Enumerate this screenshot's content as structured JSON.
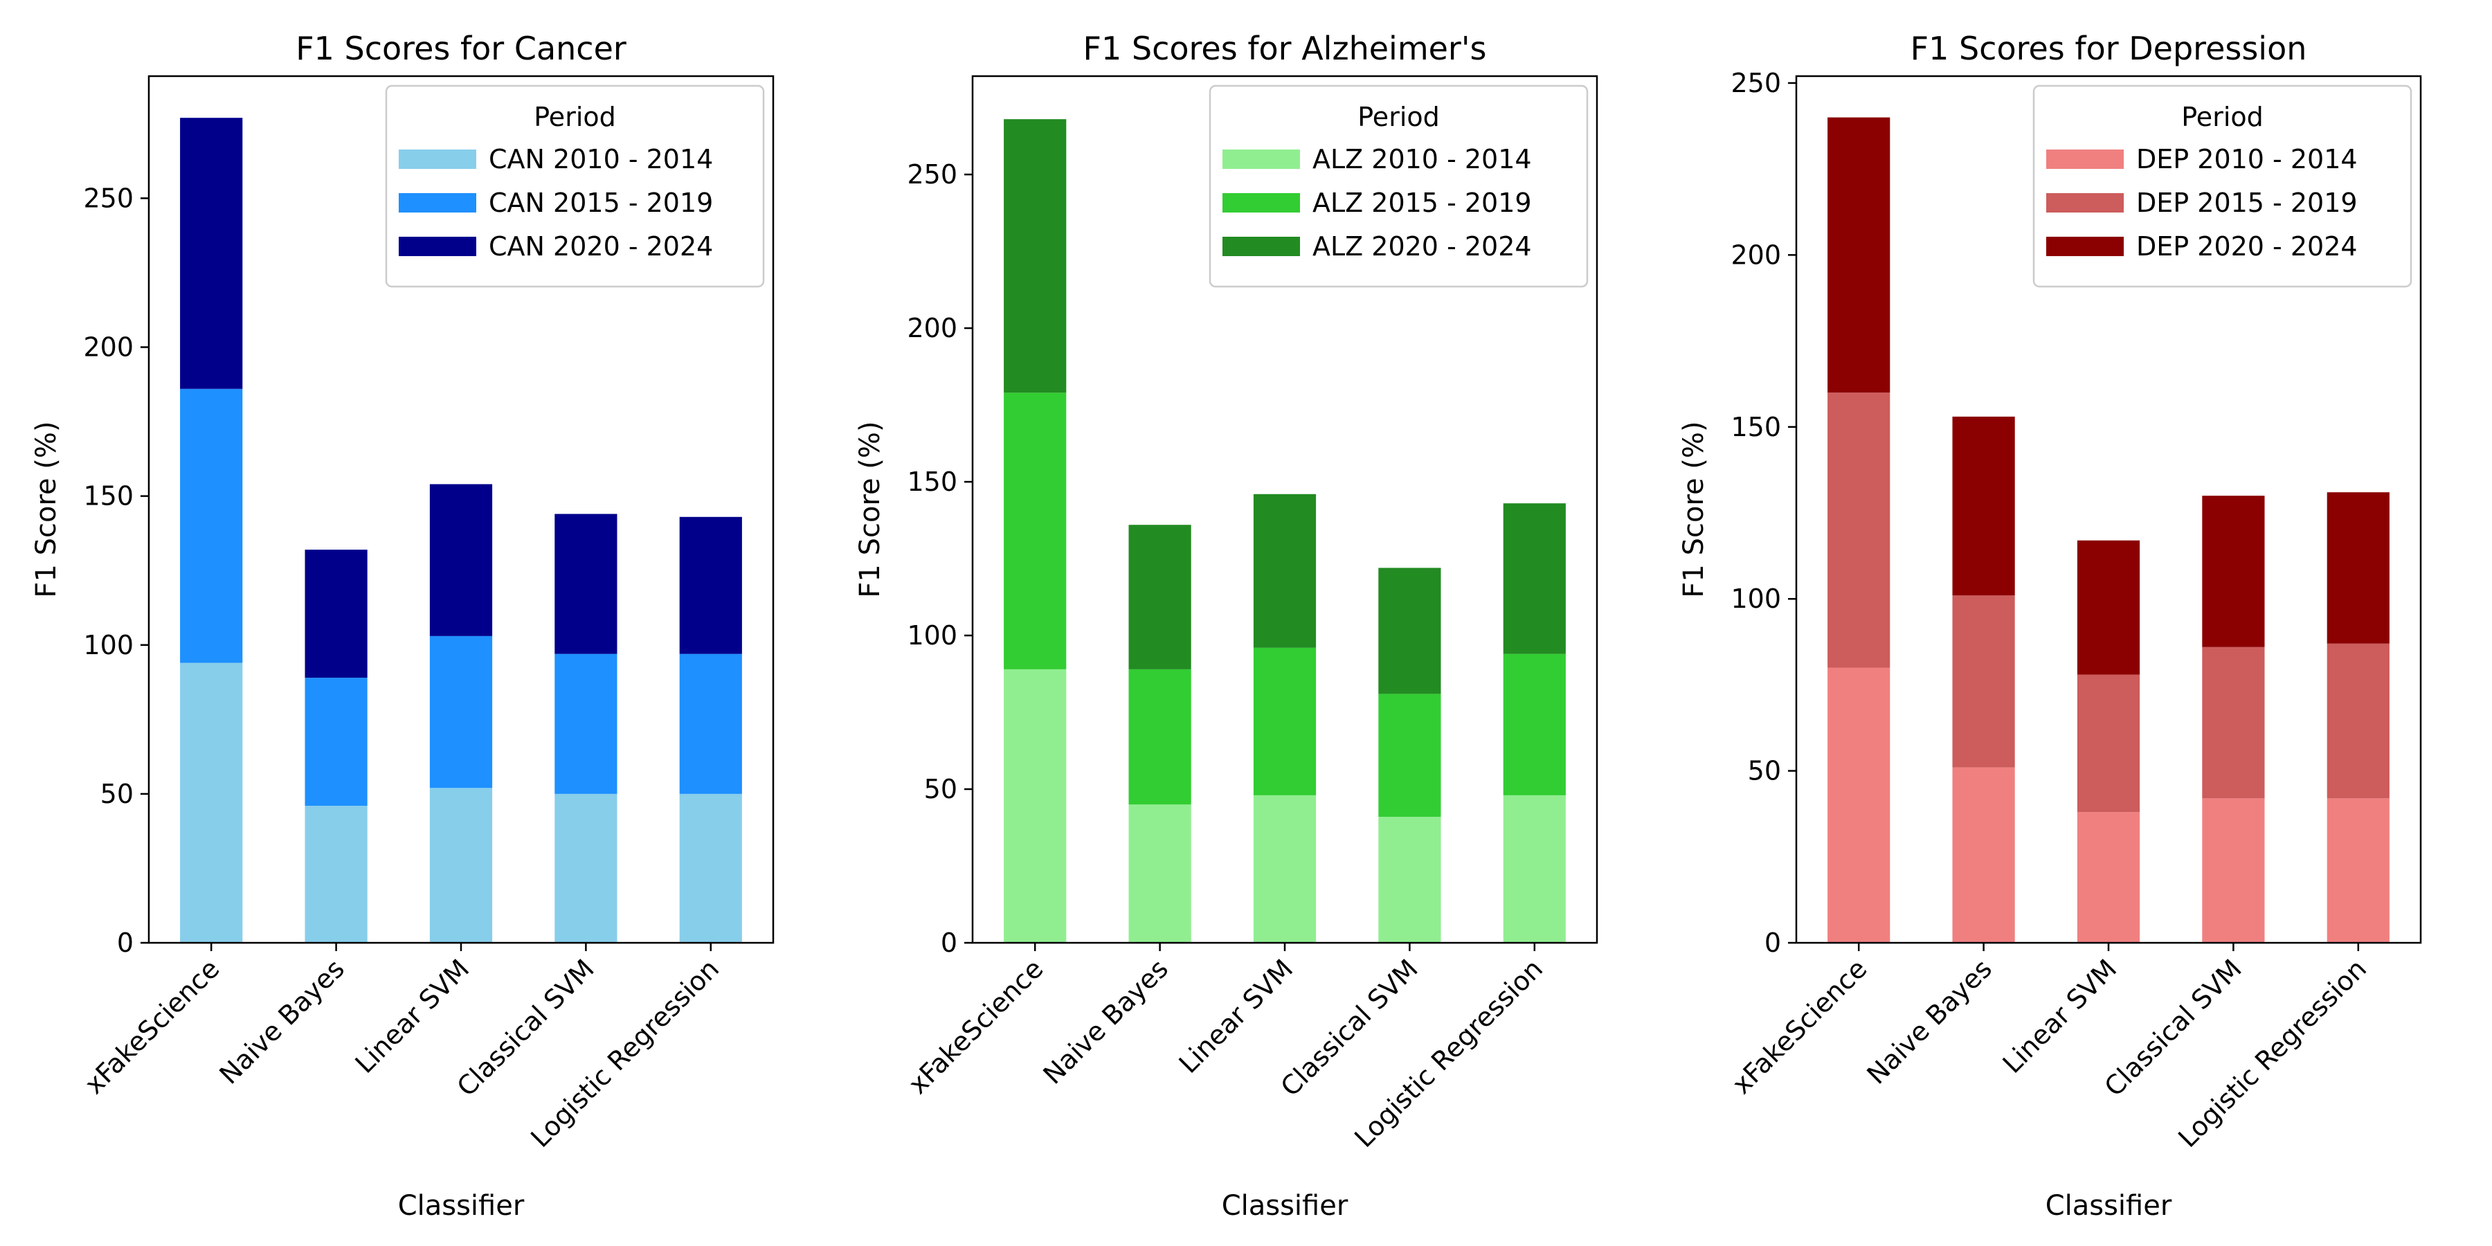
{
  "chart_data": [
    {
      "type": "bar",
      "stacked": true,
      "title": "F1 Scores for Cancer",
      "xlabel": "Classifier",
      "ylabel": "F1 Score (%)",
      "categories": [
        "xFakeScience",
        "Naive Bayes",
        "Linear SVM",
        "Classical SVM",
        "Logistic Regression"
      ],
      "ylim": [
        0,
        291
      ],
      "yticks": [
        0,
        50,
        100,
        150,
        200,
        250
      ],
      "legend_title": "Period",
      "legend_position": "top-right",
      "series": [
        {
          "name": "CAN 2010 - 2014",
          "color": "#87CEEB",
          "values": [
            94,
            46,
            52,
            50,
            50
          ]
        },
        {
          "name": "CAN 2015 - 2019",
          "color": "#1E90FF",
          "values": [
            92,
            43,
            51,
            47,
            47
          ]
        },
        {
          "name": "CAN 2020 - 2024",
          "color": "#00008B",
          "values": [
            91,
            43,
            51,
            47,
            46
          ]
        }
      ]
    },
    {
      "type": "bar",
      "stacked": true,
      "title": "F1 Scores for Alzheimer's",
      "xlabel": "Classifier",
      "ylabel": "F1 Score (%)",
      "categories": [
        "xFakeScience",
        "Naive Bayes",
        "Linear SVM",
        "Classical SVM",
        "Logistic Regression"
      ],
      "ylim": [
        0,
        282
      ],
      "yticks": [
        0,
        50,
        100,
        150,
        200,
        250
      ],
      "legend_title": "Period",
      "legend_position": "top-right",
      "series": [
        {
          "name": "ALZ 2010 - 2014",
          "color": "#90EE90",
          "values": [
            89,
            45,
            48,
            41,
            48
          ]
        },
        {
          "name": "ALZ 2015 - 2019",
          "color": "#32CD32",
          "values": [
            90,
            44,
            48,
            40,
            46
          ]
        },
        {
          "name": "ALZ 2020 - 2024",
          "color": "#228B22",
          "values": [
            89,
            47,
            50,
            41,
            49
          ]
        }
      ]
    },
    {
      "type": "bar",
      "stacked": true,
      "title": "F1 Scores for Depression",
      "xlabel": "Classifier",
      "ylabel": "F1 Score (%)",
      "categories": [
        "xFakeScience",
        "Naive Bayes",
        "Linear SVM",
        "Classical SVM",
        "Logistic Regression"
      ],
      "ylim": [
        0,
        252
      ],
      "yticks": [
        0,
        50,
        100,
        150,
        200,
        250
      ],
      "legend_title": "Period",
      "legend_position": "top-right",
      "series": [
        {
          "name": "DEP 2010 - 2014",
          "color": "#F08080",
          "values": [
            80,
            51,
            38,
            42,
            42
          ]
        },
        {
          "name": "DEP 2015 - 2019",
          "color": "#CD5C5C",
          "values": [
            80,
            50,
            40,
            44,
            45
          ]
        },
        {
          "name": "DEP 2020 - 2024",
          "color": "#8B0000",
          "values": [
            80,
            52,
            39,
            44,
            44
          ]
        }
      ]
    }
  ]
}
